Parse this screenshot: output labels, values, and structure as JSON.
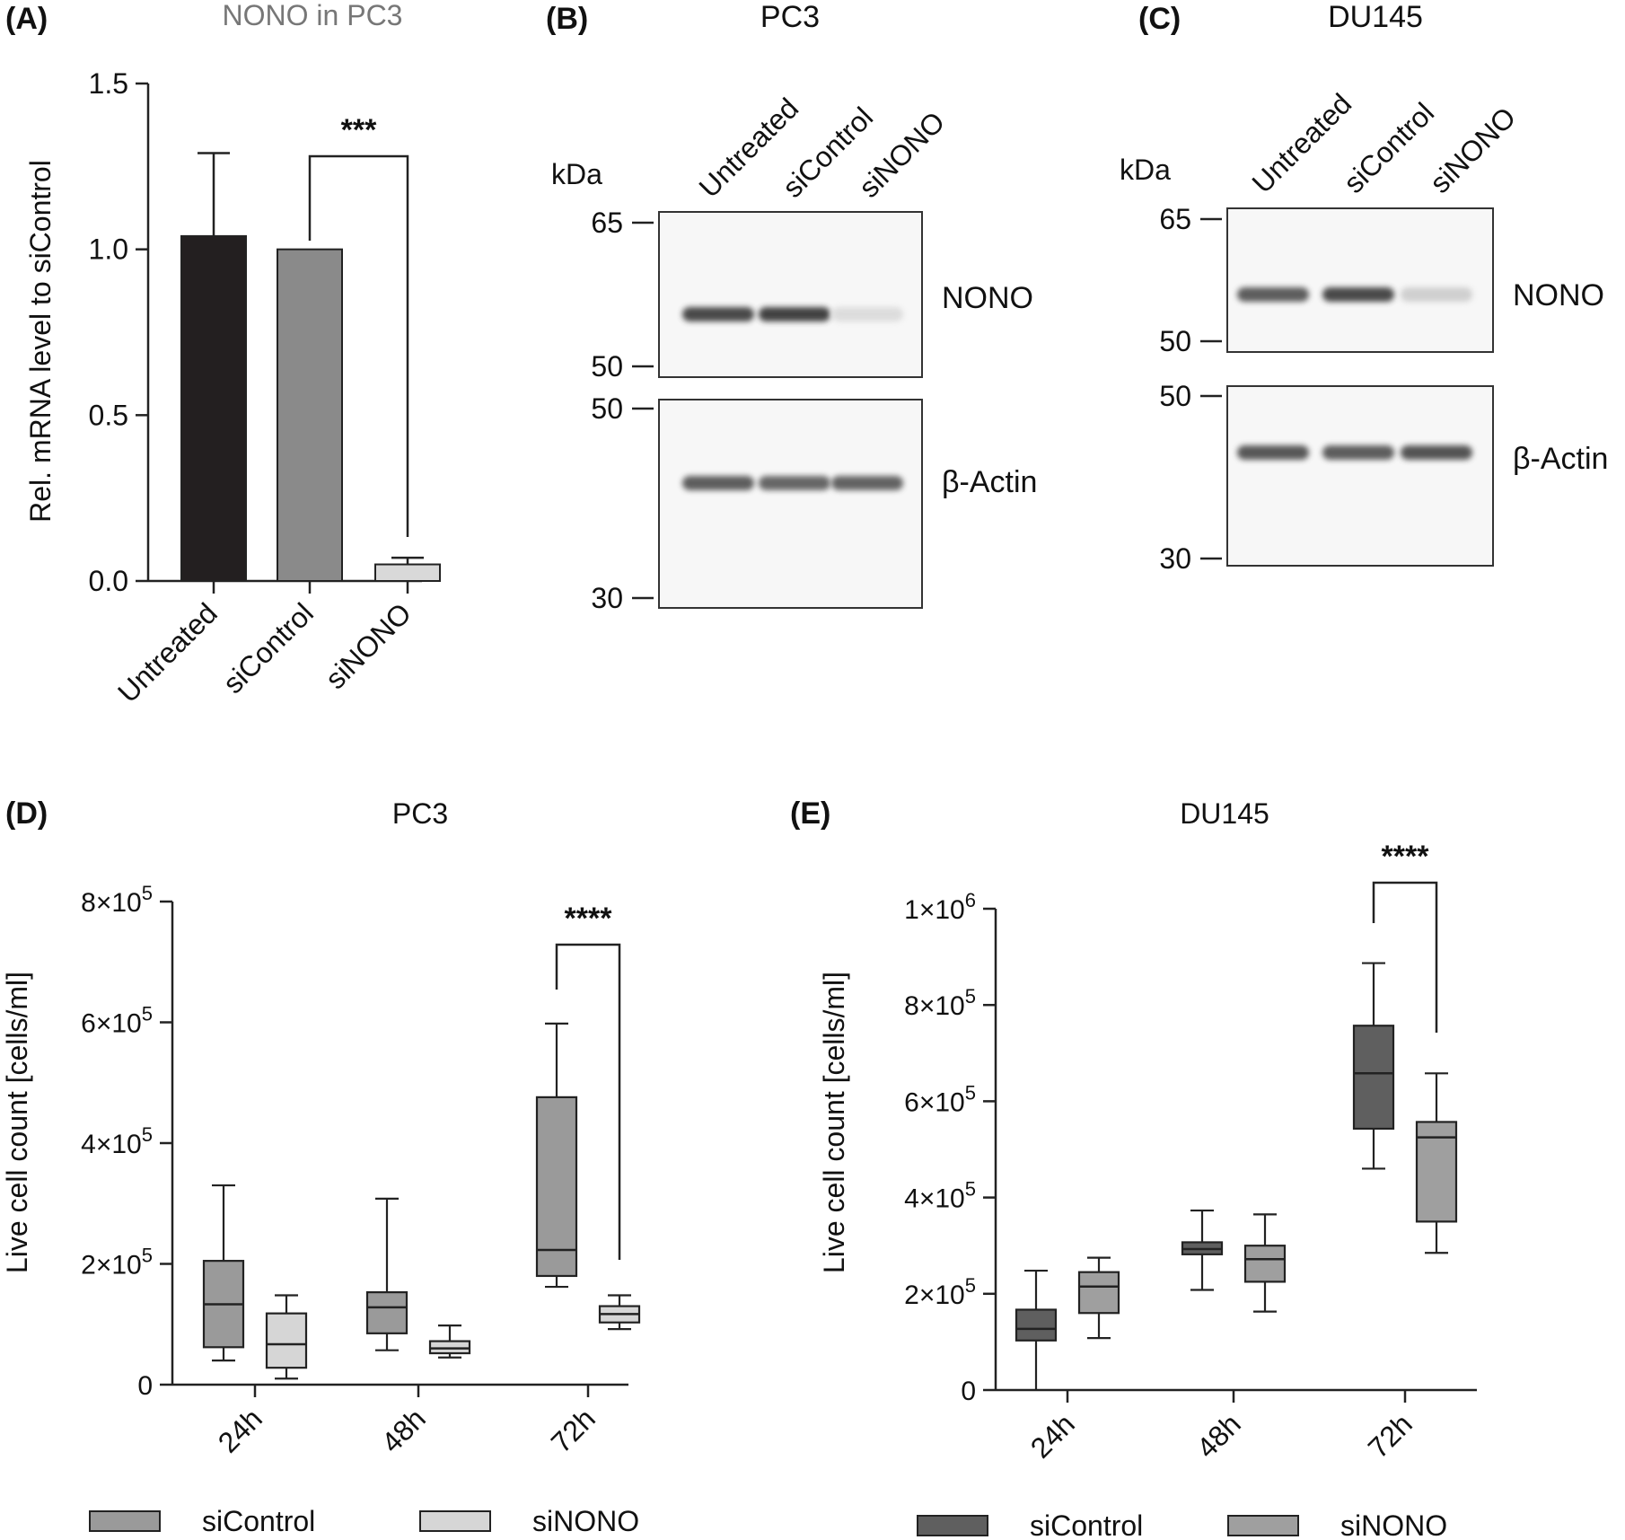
{
  "panel_labels": {
    "A": "(A)",
    "B": "(B)",
    "C": "(C)",
    "D": "(D)",
    "E": "(E)"
  },
  "chart_data": [
    {
      "id": "A",
      "type": "bar",
      "title": "NONO in PC3",
      "ylabel": "Rel. mRNA level to siControl",
      "categories": [
        "Untreated",
        "siControl",
        "siNONO"
      ],
      "values": [
        1.04,
        1.0,
        0.05
      ],
      "errors": [
        0.25,
        0,
        0.02
      ],
      "colors": [
        "#231f20",
        "#8a8a8a",
        "#d9d9d9"
      ],
      "ylim": [
        0,
        1.5
      ],
      "yticks": [
        "0.0",
        "0.5",
        "1.0",
        "1.5"
      ],
      "significance": {
        "from": "siControl",
        "to": "siNONO",
        "label": "***"
      }
    },
    {
      "id": "D",
      "type": "box",
      "title": "PC3",
      "ylabel": "Live cell count [cells/ml]",
      "categories": [
        "24h",
        "48h",
        "72h"
      ],
      "ylim": [
        0,
        800000
      ],
      "yticks": [
        {
          "base": "0",
          "exp": ""
        },
        {
          "base": "2×10",
          "exp": "5"
        },
        {
          "base": "4×10",
          "exp": "5"
        },
        {
          "base": "6×10",
          "exp": "5"
        },
        {
          "base": "8×10",
          "exp": "5"
        }
      ],
      "series": [
        {
          "name": "siControl",
          "color": "#9a9a9a",
          "boxes": [
            [
              40000,
              62000,
              133000,
              205000,
              330000
            ],
            [
              57000,
              85000,
              128000,
              153000,
              308000
            ],
            [
              162000,
              180000,
              223000,
              476000,
              598000
            ]
          ]
        },
        {
          "name": "siNONO",
          "color": "#d6d6d6",
          "boxes": [
            [
              10000,
              28000,
              67000,
              118000,
              148000
            ],
            [
              45000,
              52000,
              60000,
              72000,
              98000
            ],
            [
              92000,
              103000,
              117000,
              130000,
              148000
            ]
          ]
        }
      ],
      "significance": {
        "category": "72h",
        "label": "****"
      }
    },
    {
      "id": "E",
      "type": "box",
      "title": "DU145",
      "ylabel": "Live cell count [cells/ml]",
      "categories": [
        "24h",
        "48h",
        "72h"
      ],
      "ylim": [
        0,
        1000000
      ],
      "yticks": [
        {
          "base": "0",
          "exp": ""
        },
        {
          "base": "2×10",
          "exp": "5"
        },
        {
          "base": "4×10",
          "exp": "5"
        },
        {
          "base": "6×10",
          "exp": "5"
        },
        {
          "base": "8×10",
          "exp": "5"
        },
        {
          "base": "1×10",
          "exp": "6"
        }
      ],
      "series": [
        {
          "name": "siControl",
          "color": "#5f5f5f",
          "boxes": [
            [
              0,
              103000,
              127000,
              167000,
              248000
            ],
            [
              208000,
              282000,
              293000,
              307000,
              373000
            ],
            [
              460000,
              543000,
              658000,
              757000,
              887000
            ]
          ]
        },
        {
          "name": "siNONO",
          "color": "#9f9f9f",
          "boxes": [
            [
              108000,
              160000,
              215000,
              245000,
              275000
            ],
            [
              163000,
              225000,
              272000,
              300000,
              365000
            ],
            [
              285000,
              350000,
              525000,
              557000,
              658000
            ]
          ]
        }
      ],
      "significance": {
        "category": "72h",
        "label": "****"
      }
    }
  ],
  "blots": [
    {
      "id": "B",
      "title": "PC3",
      "unit": "kDa",
      "lanes": [
        "Untreated",
        "siControl",
        "siNONO"
      ],
      "bands": [
        {
          "label": "NONO",
          "ladder": [
            "65",
            "50"
          ],
          "intensity": [
            0.85,
            0.9,
            0.08
          ]
        },
        {
          "label": "β-Actin",
          "ladder": [
            "50",
            "30"
          ],
          "intensity": [
            0.75,
            0.7,
            0.72
          ]
        }
      ]
    },
    {
      "id": "C",
      "title": "DU145",
      "unit": "kDa",
      "lanes": [
        "Untreated",
        "siControl",
        "siNONO"
      ],
      "bands": [
        {
          "label": "NONO",
          "ladder": [
            "65",
            "50"
          ],
          "intensity": [
            0.75,
            0.85,
            0.15
          ]
        },
        {
          "label": "β-Actin",
          "ladder": [
            "50",
            "30"
          ],
          "intensity": [
            0.78,
            0.75,
            0.8
          ]
        }
      ]
    }
  ]
}
